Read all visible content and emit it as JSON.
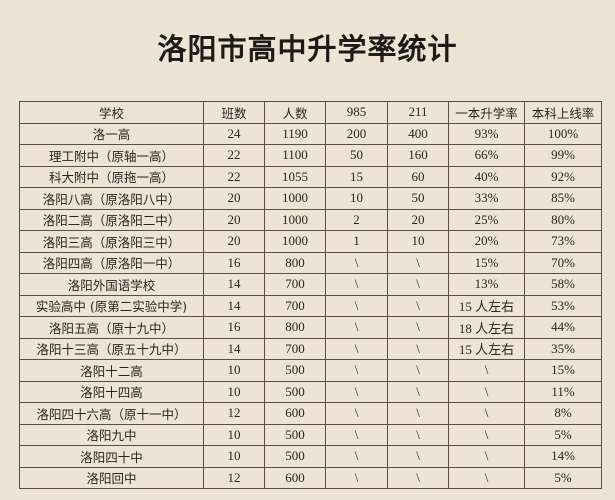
{
  "title": "洛阳市高中升学率统计",
  "table": {
    "headers": [
      "学校",
      "班数",
      "人数",
      "985",
      "211",
      "一本升学率",
      "本科上线率"
    ],
    "rows": [
      [
        "洛一高",
        "24",
        "1190",
        "200",
        "400",
        "93%",
        "100%"
      ],
      [
        "理工附中（原轴一高）",
        "22",
        "1100",
        "50",
        "160",
        "66%",
        "99%"
      ],
      [
        "科大附中（原拖一高）",
        "22",
        "1055",
        "15",
        "60",
        "40%",
        "92%"
      ],
      [
        "洛阳八高（原洛阳八中）",
        "20",
        "1000",
        "10",
        "50",
        "33%",
        "85%"
      ],
      [
        "洛阳二高（原洛阳二中）",
        "20",
        "1000",
        "2",
        "20",
        "25%",
        "80%"
      ],
      [
        "洛阳三高（原洛阳三中）",
        "20",
        "1000",
        "1",
        "10",
        "20%",
        "73%"
      ],
      [
        "洛阳四高（原洛阳一中）",
        "16",
        "800",
        "\\",
        "\\",
        "15%",
        "70%"
      ],
      [
        "洛阳外国语学校",
        "14",
        "700",
        "\\",
        "\\",
        "13%",
        "58%"
      ],
      [
        "实验高中 (原第二实验中学)",
        "14",
        "700",
        "\\",
        "\\",
        "15 人左右",
        "53%"
      ],
      [
        "洛阳五高（原十九中）",
        "16",
        "800",
        "\\",
        "\\",
        "18 人左右",
        "44%"
      ],
      [
        "洛阳十三高（原五十九中）",
        "14",
        "700",
        "\\",
        "\\",
        "15 人左右",
        "35%"
      ],
      [
        "洛阳十二高",
        "10",
        "500",
        "\\",
        "\\",
        "\\",
        "15%"
      ],
      [
        "洛阳十四高",
        "10",
        "500",
        "\\",
        "\\",
        "\\",
        "11%"
      ],
      [
        "洛阳四十六高（原十一中）",
        "12",
        "600",
        "\\",
        "\\",
        "\\",
        "8%"
      ],
      [
        "洛阳九中",
        "10",
        "500",
        "\\",
        "\\",
        "\\",
        "5%"
      ],
      [
        "洛阳四十中",
        "10",
        "500",
        "\\",
        "\\",
        "\\",
        "14%"
      ],
      [
        "洛阳回中",
        "12",
        "600",
        "\\",
        "\\",
        "\\",
        "5%"
      ]
    ]
  }
}
